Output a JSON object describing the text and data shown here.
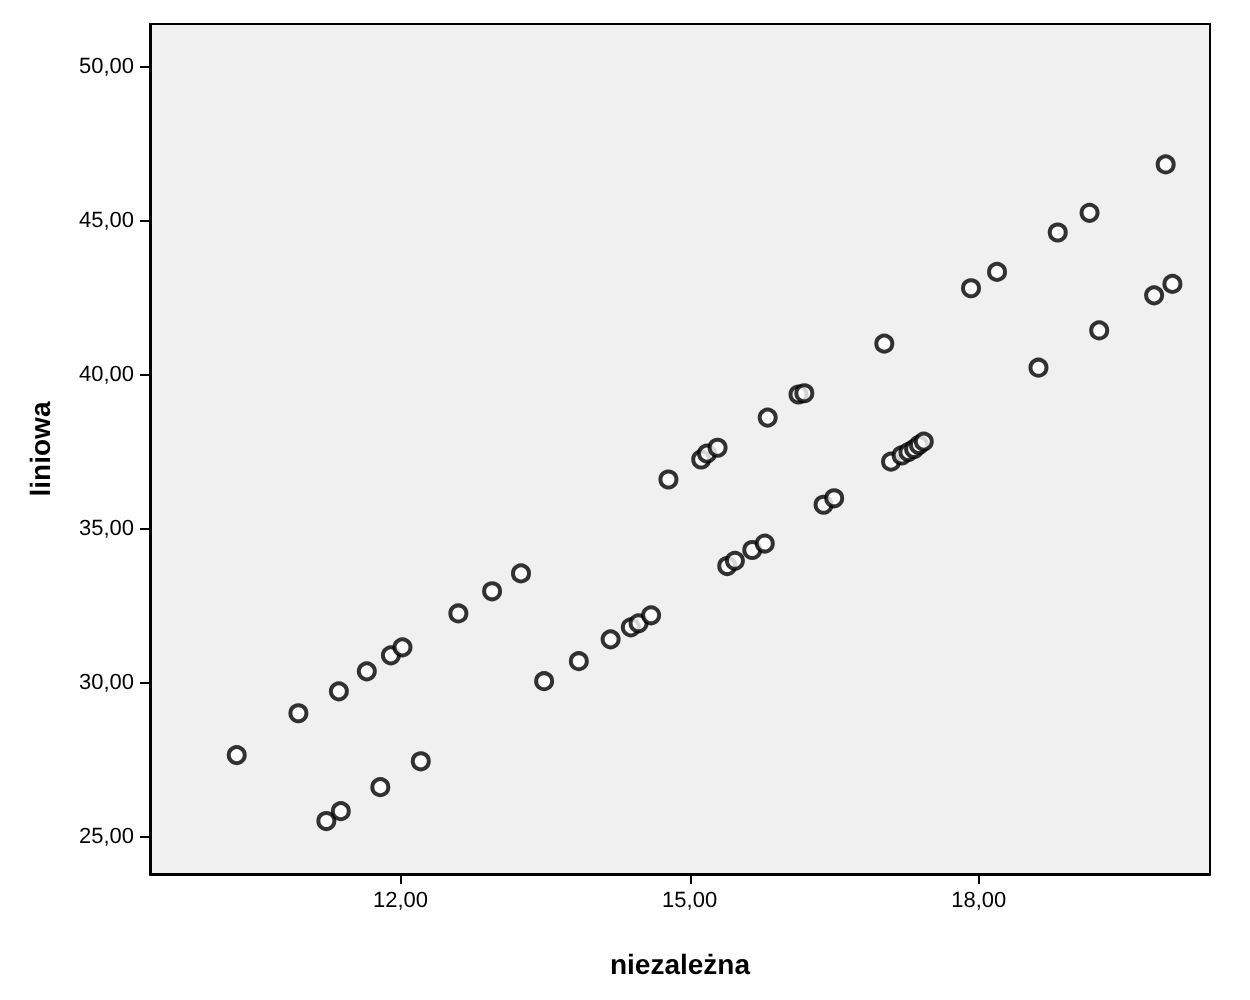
{
  "chart_data": {
    "type": "scatter",
    "xlabel": "niezależna",
    "ylabel": "liniowa",
    "xlim": [
      9.4,
      20.4
    ],
    "ylim": [
      23.8,
      51.4
    ],
    "xticks": [
      {
        "value": 12,
        "label": "12,00"
      },
      {
        "value": 15,
        "label": "15,00"
      },
      {
        "value": 18,
        "label": "18,00"
      }
    ],
    "yticks": [
      {
        "value": 25,
        "label": "25,00"
      },
      {
        "value": 30,
        "label": "30,00"
      },
      {
        "value": 35,
        "label": "35,00"
      },
      {
        "value": 40,
        "label": "40,00"
      },
      {
        "value": 45,
        "label": "45,00"
      },
      {
        "value": 50,
        "label": "50,00"
      }
    ],
    "grid": false,
    "marker": "circle",
    "series": [
      {
        "color": "#000000",
        "x": [
          10.3,
          10.94,
          11.36,
          11.65,
          11.9,
          12.02,
          12.6,
          12.95,
          13.25,
          11.23,
          11.38,
          11.79,
          12.21,
          13.49,
          13.85,
          14.18,
          14.39,
          14.47,
          14.6,
          14.78,
          15.09,
          15.12,
          15.18,
          15.29,
          15.81,
          16.13,
          16.19,
          17.02,
          15.39,
          15.47,
          15.65,
          15.78,
          16.39,
          16.5,
          17.09,
          17.2,
          17.27,
          17.33,
          17.38,
          17.43,
          17.92,
          18.19,
          18.82,
          19.15,
          19.94,
          18.62,
          19.25,
          19.82,
          20.01
        ],
        "values": [
          27.66,
          29.02,
          29.73,
          30.38,
          30.9,
          31.16,
          32.26,
          32.98,
          33.56,
          25.52,
          25.84,
          26.62,
          27.46,
          30.06,
          30.71,
          31.42,
          31.81,
          31.94,
          32.2,
          36.61,
          null,
          37.26,
          37.45,
          37.64,
          38.62,
          39.37,
          39.41,
          41.02,
          33.8,
          33.97,
          34.32,
          34.53,
          35.79,
          36.0,
          37.19,
          37.39,
          37.5,
          37.6,
          37.73,
          37.84,
          42.82,
          43.35,
          44.63,
          45.27,
          46.84,
          40.24,
          41.45,
          42.59,
          42.96
        ]
      }
    ]
  }
}
